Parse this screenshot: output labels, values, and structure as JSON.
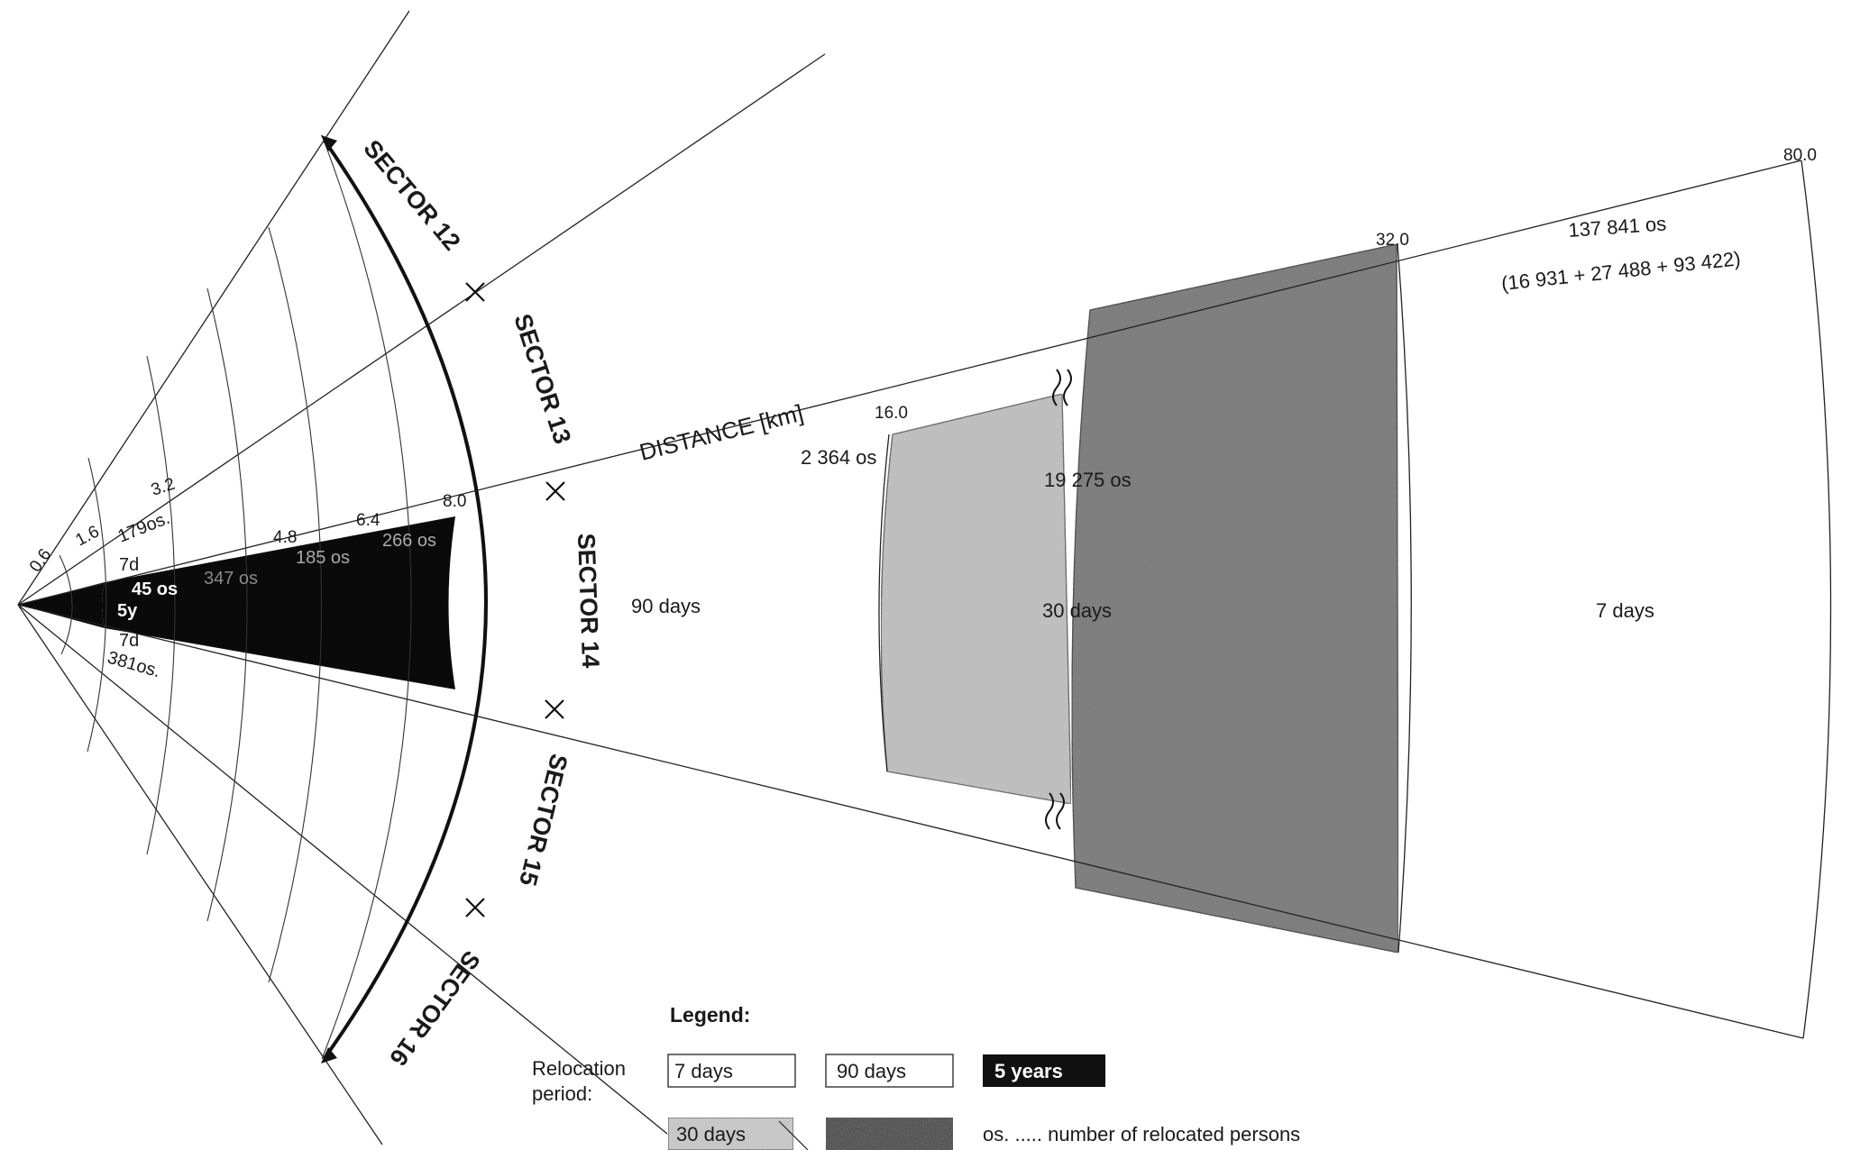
{
  "sectors": [
    {
      "id": "12",
      "label": "SECTOR 12"
    },
    {
      "id": "13",
      "label": "SECTOR 13"
    },
    {
      "id": "14",
      "label": "SECTOR 14"
    },
    {
      "id": "15",
      "label": "SECTOR 15"
    },
    {
      "id": "16",
      "label": "SECTOR 16"
    }
  ],
  "distance_axis": {
    "label": "DISTANCE [km]",
    "ticks": [
      "0.6",
      "1.6",
      "3.2",
      "4.8",
      "6.4",
      "8.0",
      "16.0",
      "32.0",
      "80.0"
    ]
  },
  "zones": {
    "inner_black": {
      "period": "5y",
      "persons": [
        "45 os",
        "347 os",
        "185 os",
        "266 os"
      ]
    },
    "inner_upper": {
      "period": "7d",
      "persons": "179os."
    },
    "inner_lower": {
      "period": "7d",
      "persons": "381os."
    },
    "z_8_16": {
      "period": "90 days",
      "persons": "2 364 os"
    },
    "z_16_32": {
      "period": "30 days",
      "persons": "19 275 os"
    },
    "z_32_80": {
      "period": "7 days",
      "persons": "137 841 os",
      "breakdown": "(16 931 + 27 488 + 93 422)"
    }
  },
  "legend": {
    "title": "Legend:",
    "relocation_label_line1": "Relocation",
    "relocation_label_line2": "period:",
    "items": [
      {
        "label": "7 days",
        "color": "#ffffff"
      },
      {
        "label": "90 days",
        "color": "#ffffff"
      },
      {
        "label": "5 years",
        "color": "#111111"
      },
      {
        "label": "30 days",
        "color": "#c9c9c9"
      },
      {
        "label": "",
        "color": "#3a3a3a"
      }
    ],
    "note": "os. ..... number of relocated persons"
  }
}
